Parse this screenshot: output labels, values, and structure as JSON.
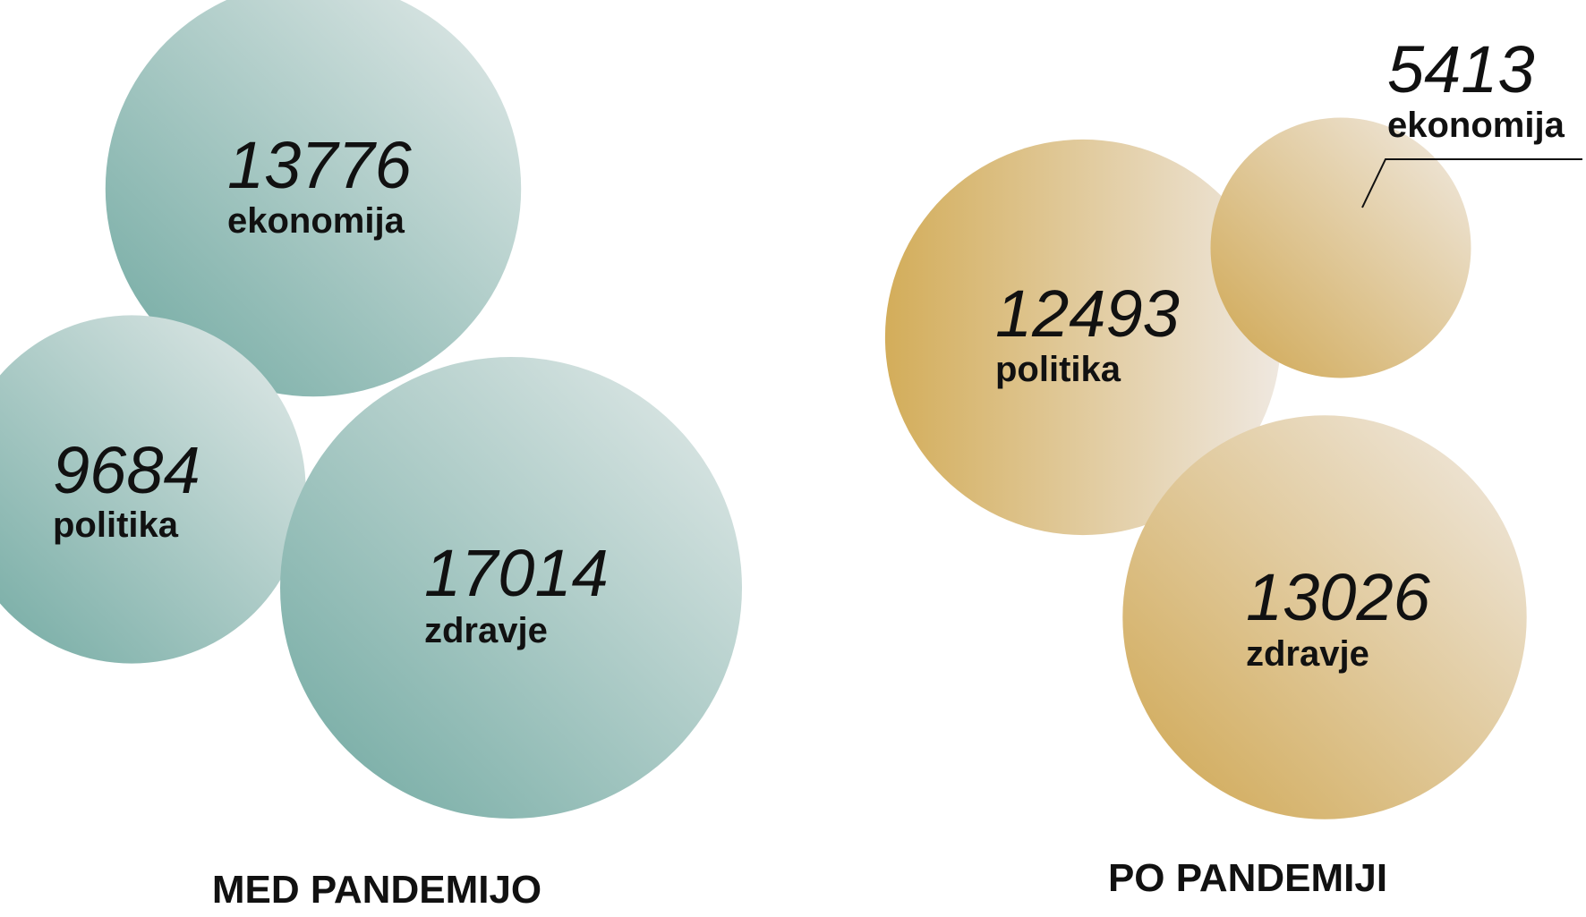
{
  "chart_data": [
    {
      "type": "bubble",
      "title": "MED PANDEMIJO",
      "color": "#6fa8a0",
      "color_light": "#dde6e4",
      "series": [
        {
          "label": "ekonomija",
          "value": 13776
        },
        {
          "label": "politika",
          "value": 9684
        },
        {
          "label": "zdravje",
          "value": 17014
        }
      ]
    },
    {
      "type": "bubble",
      "title": "PO PANDEMIJI",
      "color": "#d1aa52",
      "color_light": "#efe7dd",
      "series": [
        {
          "label": "politika",
          "value": 12493
        },
        {
          "label": "ekonomija",
          "value": 5413
        },
        {
          "label": "zdravje",
          "value": 13026
        }
      ]
    }
  ]
}
